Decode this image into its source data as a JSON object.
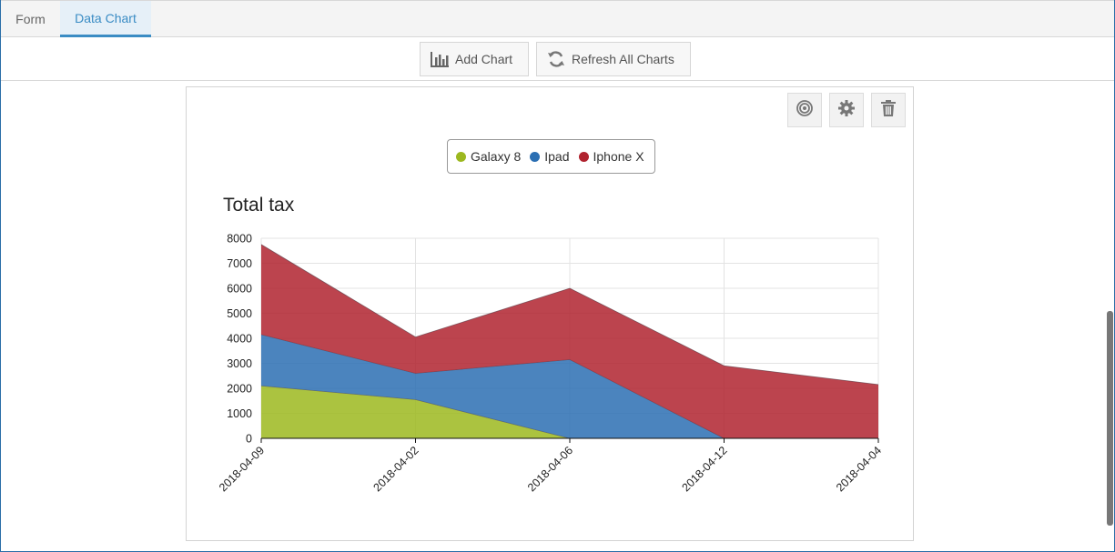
{
  "tabs": [
    {
      "label": "Form",
      "active": false
    },
    {
      "label": "Data Chart",
      "active": true
    }
  ],
  "toolbar": {
    "add_chart_label": "Add Chart",
    "refresh_label": "Refresh All Charts"
  },
  "chart_actions": {
    "target_icon": "target-icon",
    "settings_icon": "gear-icon",
    "delete_icon": "trash-icon"
  },
  "colors": {
    "accent": "#3a8cc4",
    "galaxy": "#9cb81f",
    "ipad": "#2b6fb3",
    "iphone": "#b0232f"
  },
  "chart_data": {
    "type": "area",
    "stacked": true,
    "title": "Total tax",
    "xlabel": "",
    "ylabel": "",
    "categories": [
      "2018-04-09",
      "2018-04-02",
      "2018-04-06",
      "2018-04-12",
      "2018-04-04"
    ],
    "ylim": [
      0,
      8000
    ],
    "yticks": [
      0,
      1000,
      2000,
      3000,
      4000,
      5000,
      6000,
      7000,
      8000
    ],
    "grid": true,
    "legend_position": "top-center",
    "series": [
      {
        "name": "Galaxy 8",
        "color": "#9cb81f",
        "values": [
          2100,
          1550,
          0,
          0,
          0
        ]
      },
      {
        "name": "Ipad",
        "color": "#2b6fb3",
        "values": [
          2050,
          1050,
          3150,
          0,
          0
        ]
      },
      {
        "name": "Iphone X",
        "color": "#b0232f",
        "values": [
          3600,
          1450,
          2850,
          2900,
          2150
        ]
      }
    ]
  }
}
